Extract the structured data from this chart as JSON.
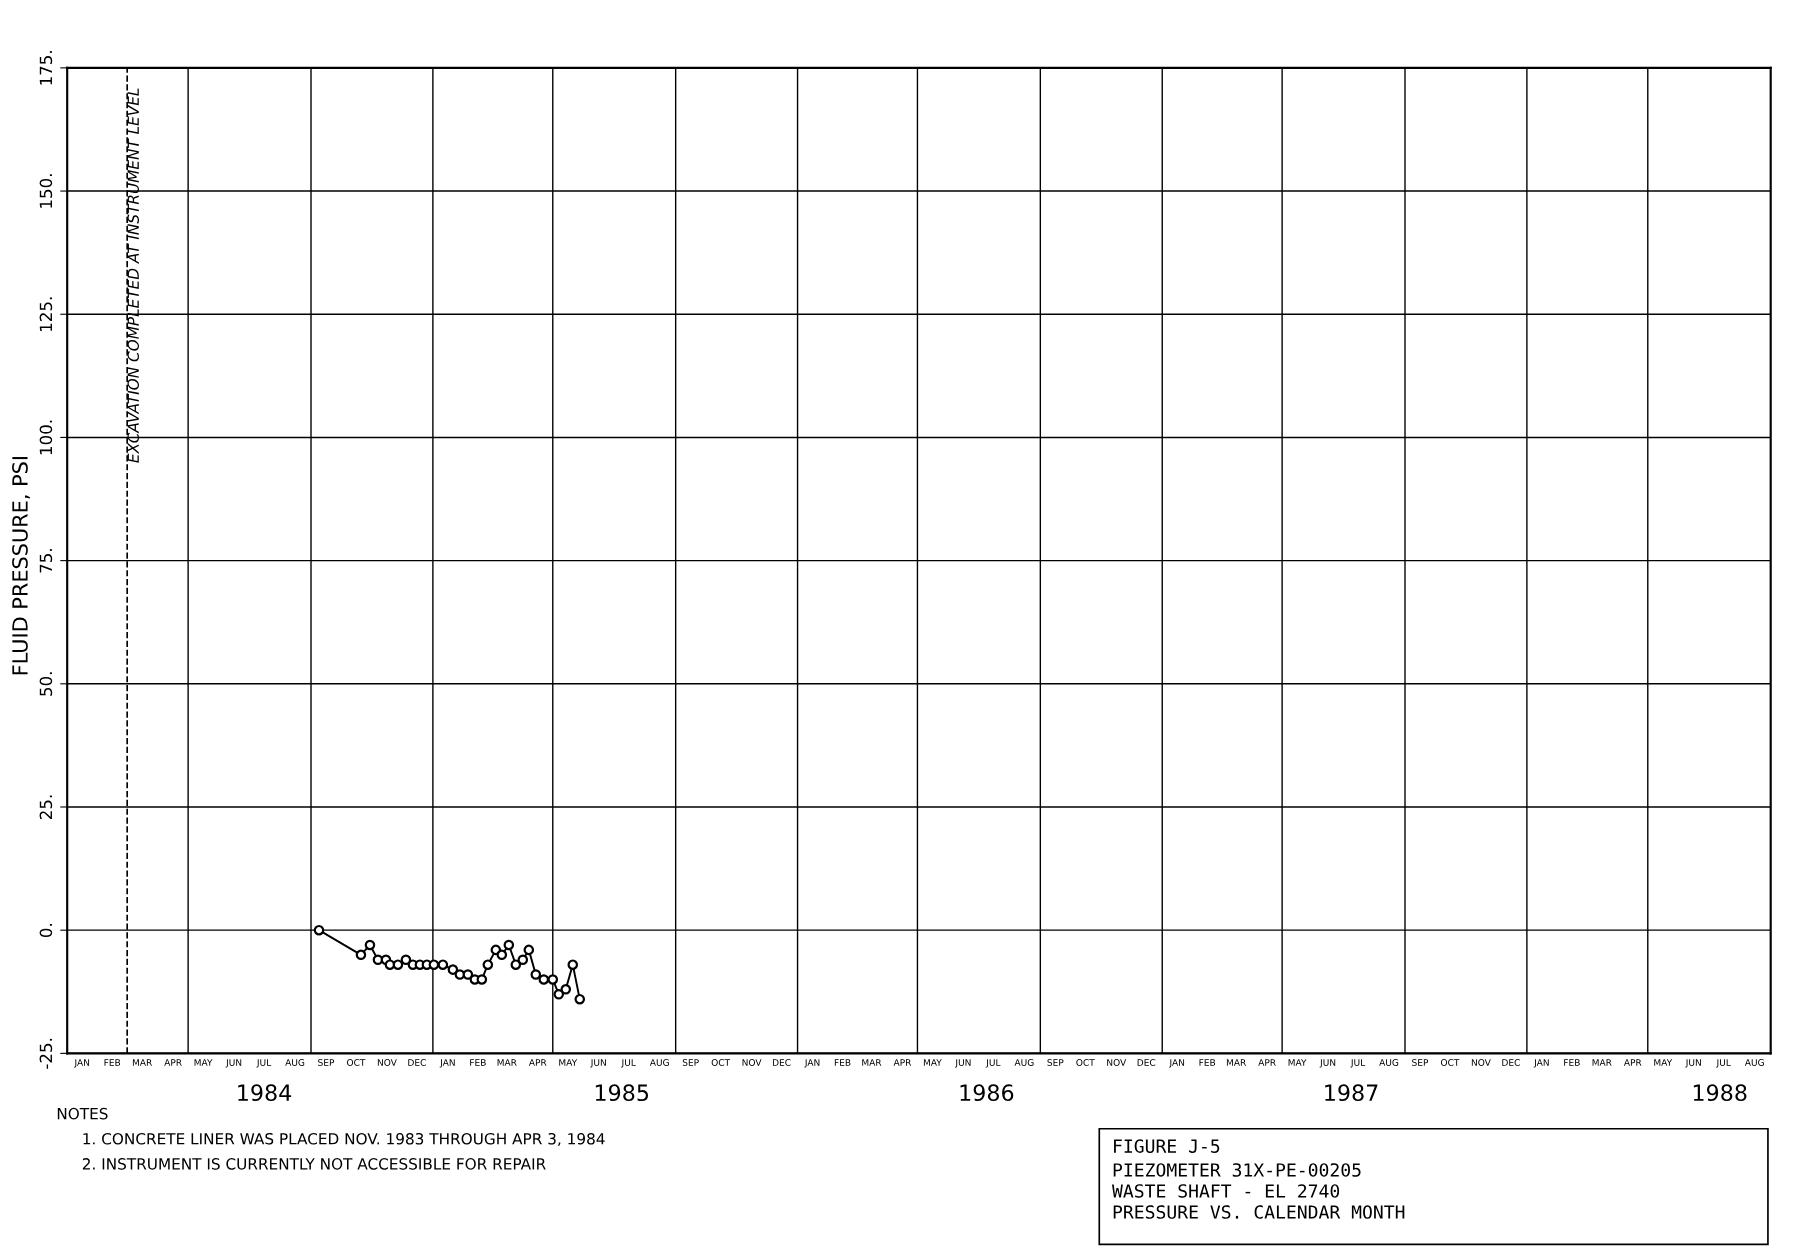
{
  "chart_data": {
    "type": "line",
    "title": "FIGURE J-5",
    "subtitle": "PIEZOMETER 31X-PE-00205\nWASTE SHAFT - EL 2740\nPRESSURE VS. CALENDAR MONTH",
    "ylabel": "FLUID PRESSURE, PSI",
    "annotations": [
      "NOTES",
      "1. CONCRETE LINER WAS PLACED NOV. 1983 THROUGH APR 3, 1984",
      "2. INSTRUMENT IS CURRENTLY NOT ACCESSIBLE FOR REPAIR"
    ],
    "series": [
      {
        "color": "#000000",
        "marker": "circle",
        "line_style": "solid",
        "x": [
          "1984-09-09",
          "1984-10-21",
          "1984-10-30",
          "1984-11-07",
          "1984-11-15",
          "1984-11-19",
          "1984-11-27",
          "1984-12-05",
          "1984-12-12",
          "1984-12-19",
          "1984-12-26",
          "1985-01-02",
          "1985-01-11",
          "1985-01-21",
          "1985-01-28",
          "1985-02-05",
          "1985-02-12",
          "1985-02-19",
          "1985-02-25",
          "1985-03-05",
          "1985-03-11",
          "1985-03-18",
          "1985-03-25",
          "1985-04-01",
          "1985-04-07",
          "1985-04-14",
          "1985-04-22",
          "1985-05-01",
          "1985-05-07",
          "1985-05-14",
          "1985-05-21",
          "1985-05-28"
        ],
        "values": [
          0,
          -5,
          -3,
          -6,
          -6,
          -7,
          -7,
          -6,
          -7,
          -7,
          -7,
          -7,
          -7,
          -8,
          -9,
          -9,
          -10,
          -10,
          -7,
          -4,
          -5,
          -3,
          -7,
          -6,
          -4,
          -9,
          -10,
          -10,
          -13,
          -12,
          -7,
          -14
        ]
      }
    ],
    "xlim": [
      "1984-01-01",
      "1988-09-01"
    ],
    "xticks": [
      {
        "value": "1984-01-16",
        "label": "JAN"
      },
      {
        "value": "1984-02-15",
        "label": "FEB"
      },
      {
        "value": "1984-03-16",
        "label": "MAR"
      },
      {
        "value": "1984-04-16",
        "label": "APR"
      },
      {
        "value": "1984-05-16",
        "label": "MAY"
      },
      {
        "value": "1984-06-16",
        "label": "JUN"
      },
      {
        "value": "1984-07-16",
        "label": "JUL"
      },
      {
        "value": "1984-08-16",
        "label": "AUG"
      },
      {
        "value": "1984-09-16",
        "label": "SEP"
      },
      {
        "value": "1984-10-16",
        "label": "OCT"
      },
      {
        "value": "1984-11-16",
        "label": "NOV"
      },
      {
        "value": "1984-12-16",
        "label": "DEC"
      },
      {
        "value": "1985-01-16",
        "label": "JAN"
      },
      {
        "value": "1985-02-15",
        "label": "FEB"
      },
      {
        "value": "1985-03-16",
        "label": "MAR"
      },
      {
        "value": "1985-04-16",
        "label": "APR"
      },
      {
        "value": "1985-05-16",
        "label": "MAY"
      },
      {
        "value": "1985-06-16",
        "label": "JUN"
      },
      {
        "value": "1985-07-16",
        "label": "JUL"
      },
      {
        "value": "1985-08-16",
        "label": "AUG"
      },
      {
        "value": "1985-09-16",
        "label": "SEP"
      },
      {
        "value": "1985-10-16",
        "label": "OCT"
      },
      {
        "value": "1985-11-16",
        "label": "NOV"
      },
      {
        "value": "1985-12-16",
        "label": "DEC"
      },
      {
        "value": "1986-01-16",
        "label": "JAN"
      },
      {
        "value": "1986-02-15",
        "label": "FEB"
      },
      {
        "value": "1986-03-16",
        "label": "MAR"
      },
      {
        "value": "1986-04-16",
        "label": "APR"
      },
      {
        "value": "1986-05-16",
        "label": "MAY"
      },
      {
        "value": "1986-06-16",
        "label": "JUN"
      },
      {
        "value": "1986-07-16",
        "label": "JUL"
      },
      {
        "value": "1986-08-16",
        "label": "AUG"
      },
      {
        "value": "1986-09-16",
        "label": "SEP"
      },
      {
        "value": "1986-10-16",
        "label": "OCT"
      },
      {
        "value": "1986-11-16",
        "label": "NOV"
      },
      {
        "value": "1986-12-16",
        "label": "DEC"
      },
      {
        "value": "1987-01-16",
        "label": "JAN"
      },
      {
        "value": "1987-02-15",
        "label": "FEB"
      },
      {
        "value": "1987-03-16",
        "label": "MAR"
      },
      {
        "value": "1987-04-16",
        "label": "APR"
      },
      {
        "value": "1987-05-16",
        "label": "MAY"
      },
      {
        "value": "1987-06-16",
        "label": "JUN"
      },
      {
        "value": "1987-07-16",
        "label": "JUL"
      },
      {
        "value": "1987-08-16",
        "label": "AUG"
      },
      {
        "value": "1987-09-16",
        "label": "SEP"
      },
      {
        "value": "1987-10-16",
        "label": "OCT"
      },
      {
        "value": "1987-11-16",
        "label": "NOV"
      },
      {
        "value": "1987-12-16",
        "label": "DEC"
      },
      {
        "value": "1988-01-16",
        "label": "JAN"
      },
      {
        "value": "1988-02-15",
        "label": "FEB"
      },
      {
        "value": "1988-03-16",
        "label": "MAR"
      },
      {
        "value": "1988-04-16",
        "label": "APR"
      },
      {
        "value": "1988-05-16",
        "label": "MAY"
      },
      {
        "value": "1988-06-16",
        "label": "JUN"
      },
      {
        "value": "1988-07-16",
        "label": "JUL"
      },
      {
        "value": "1988-08-16",
        "label": "AUG"
      }
    ],
    "x2ticks": [
      {
        "value": "1984-07-16",
        "label": "1984"
      },
      {
        "value": "1985-07-09",
        "label": "1985"
      },
      {
        "value": "1986-07-09",
        "label": "1986"
      },
      {
        "value": "1987-07-09",
        "label": "1987"
      },
      {
        "value": "1988-07-12",
        "label": "1988"
      }
    ],
    "ylim": [
      -25,
      175
    ],
    "yticks": [
      {
        "value": -25,
        "label": "-25."
      },
      {
        "value": 0,
        "label": "0."
      },
      {
        "value": 25,
        "label": "25."
      },
      {
        "value": 50,
        "label": "50."
      },
      {
        "value": 75,
        "label": "75."
      },
      {
        "value": 100,
        "label": "100."
      },
      {
        "value": 125,
        "label": "125."
      },
      {
        "value": 150,
        "label": "150."
      },
      {
        "value": 175,
        "label": "175."
      }
    ],
    "x2lim": [
      "1984-01-01",
      "1988-09-01"
    ],
    "grid": "y",
    "ref_lines": [
      {
        "axis": "x",
        "value": "1984-03-01",
        "label": "EXCAVATION COMPLETED AT INSTRUMENT LEVEL",
        "line_style": "dashed",
        "color": "#000000"
      },
      {
        "axis": "x",
        "value": "1984-05-01",
        "color": "#000000"
      },
      {
        "axis": "x",
        "value": "1984-09-01",
        "color": "#000000"
      },
      {
        "axis": "x",
        "value": "1985-01-01",
        "color": "#000000"
      },
      {
        "axis": "x",
        "value": "1985-05-01",
        "color": "#000000"
      },
      {
        "axis": "x",
        "value": "1985-09-01",
        "color": "#000000"
      },
      {
        "axis": "x",
        "value": "1986-01-01",
        "color": "#000000"
      },
      {
        "axis": "x",
        "value": "1986-05-01",
        "color": "#000000"
      },
      {
        "axis": "x",
        "value": "1986-09-01",
        "color": "#000000"
      },
      {
        "axis": "x",
        "value": "1987-01-01",
        "color": "#000000"
      },
      {
        "axis": "x",
        "value": "1987-05-01",
        "color": "#000000"
      },
      {
        "axis": "x",
        "value": "1987-09-01",
        "color": "#000000"
      },
      {
        "axis": "x",
        "value": "1988-01-01",
        "color": "#000000"
      },
      {
        "axis": "x",
        "value": "1988-05-01",
        "color": "#000000"
      }
    ]
  }
}
